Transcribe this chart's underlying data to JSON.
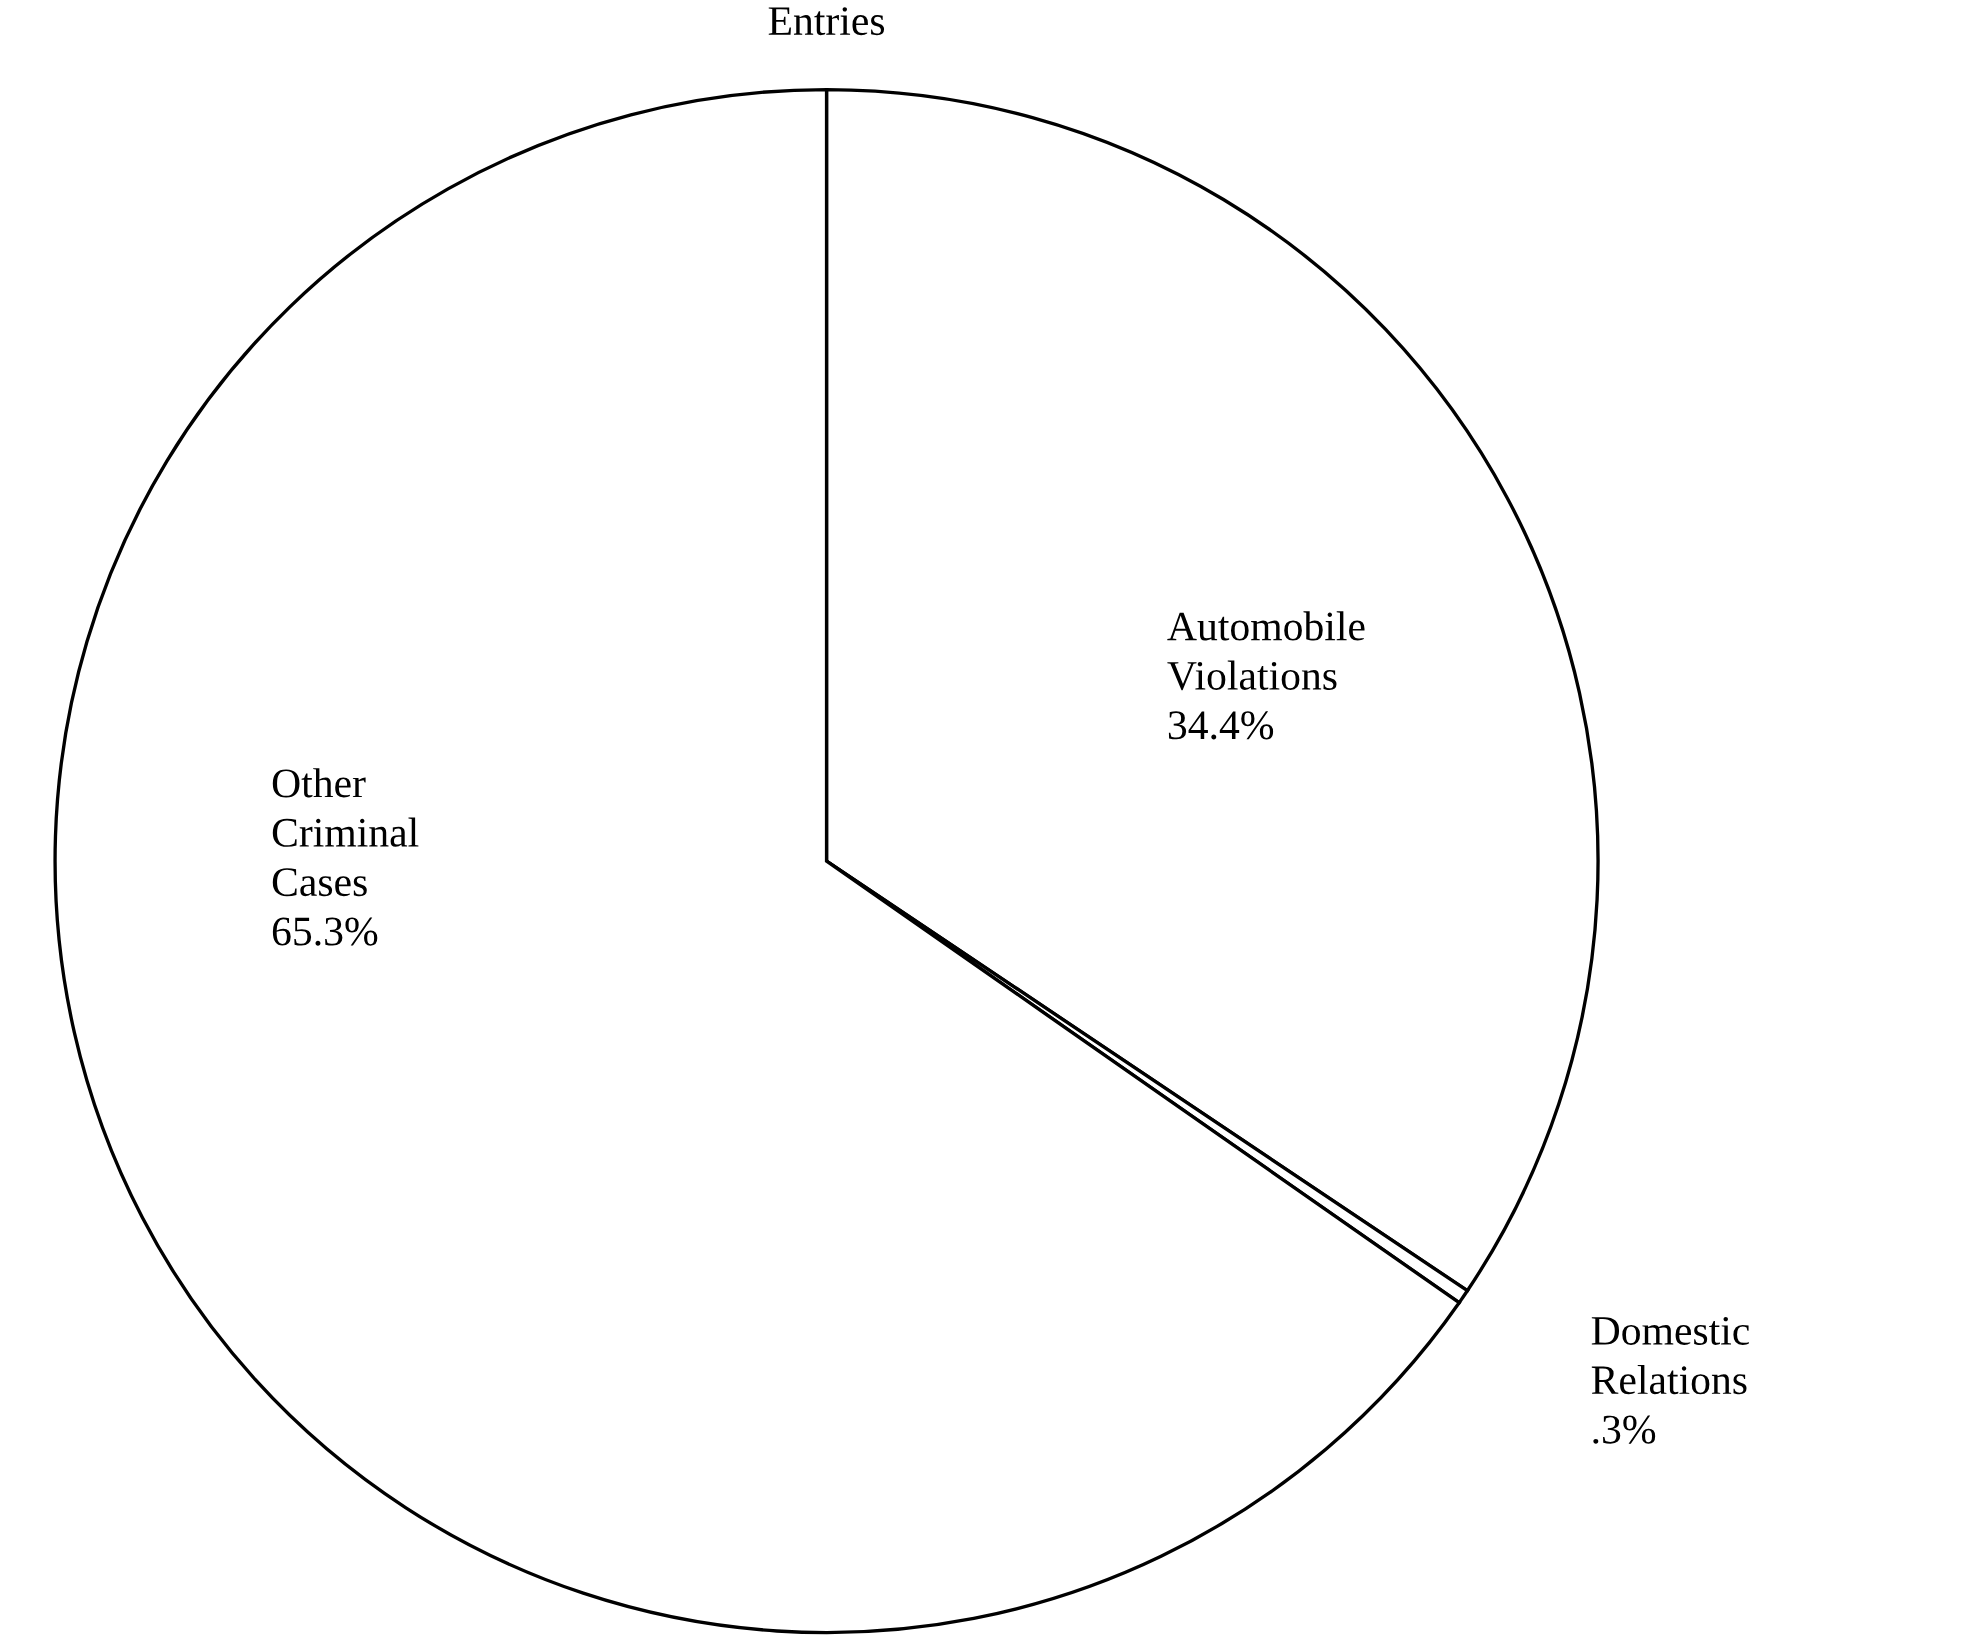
{
  "chart_data": {
    "type": "pie",
    "title": "Entries",
    "categories": [
      "Automobile Violations",
      "Domestic Relations",
      "Other Criminal Cases"
    ],
    "values": [
      34.4,
      0.3,
      65.3
    ],
    "value_labels": [
      "34.4%",
      ".3%",
      "65.3%"
    ],
    "colors": [
      "#ffffff",
      "#ffffff",
      "#ffffff"
    ]
  }
}
